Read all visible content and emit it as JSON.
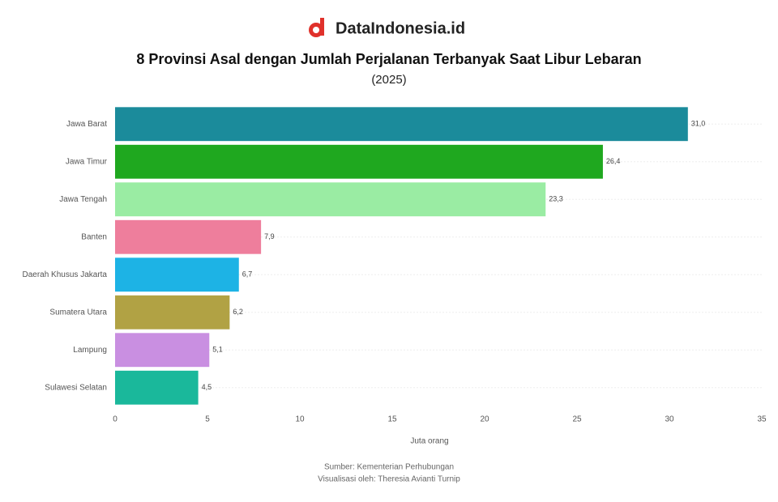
{
  "brand": "DataIndonesia.id",
  "chart_data": {
    "type": "hbar",
    "title": "8 Provinsi Asal dengan Jumlah Perjalanan Terbanyak Saat Libur Lebaran",
    "subtitle": "(2025)",
    "x_label": "Juta orang",
    "categories": [
      "Jawa Barat",
      "Jawa Timur",
      "Jawa Tengah",
      "Banten",
      "Daerah Khusus Jakarta",
      "Sumatera Utara",
      "Lampung",
      "Sulawesi Selatan"
    ],
    "values": [
      31.0,
      26.4,
      23.3,
      7.9,
      6.7,
      6.2,
      5.1,
      4.5
    ],
    "value_labels": [
      "31,0",
      "26,4",
      "23,3",
      "7,9",
      "6,7",
      "6,2",
      "5,1",
      "4,5"
    ],
    "colors": [
      "#1b8b9b",
      "#1fa81f",
      "#9aeca3",
      "#ee7e9c",
      "#1db3e5",
      "#b1a244",
      "#c98fe1",
      "#1ab89b"
    ],
    "xlim": [
      0,
      35
    ],
    "xticks": [
      0,
      5,
      10,
      15,
      20,
      25,
      30,
      35
    ],
    "footer": [
      "Sumber: Kementerian Perhubungan",
      "Visualisasi oleh: Theresia Avianti Turnip"
    ]
  }
}
